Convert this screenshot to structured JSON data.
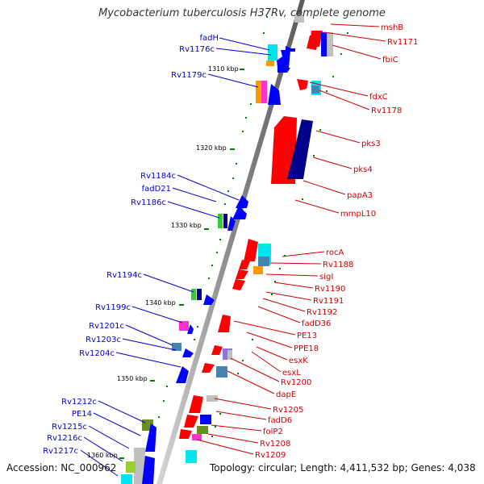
{
  "title": "Mycobacterium tuberculosis H37Rv, complete genome",
  "footer": {
    "accession": "Accession: NC_000962",
    "summary": "Topology: circular; Length: 4,411,532 bp; Genes: 4,038"
  },
  "ticks": [
    "1310 kbp",
    "1320 kbp",
    "1330 kbp",
    "1340 kbp",
    "1350 kbp",
    "1360 kbp"
  ],
  "left_labels": [
    "fadH",
    "Rv1176c",
    "Rv1179c",
    "Rv1184c",
    "fadD21",
    "Rv1186c",
    "Rv1194c",
    "Rv1199c",
    "Rv1201c",
    "Rv1203c",
    "Rv1204c",
    "Rv1212c",
    "PE14",
    "Rv1215c",
    "Rv1216c",
    "Rv1217c"
  ],
  "right_labels": [
    "mshB",
    "Rv1171",
    "fbiC",
    "fdxC",
    "Rv1178",
    "pks3",
    "pks4",
    "papA3",
    "mmpL10",
    "rocA",
    "Rv1188",
    "sigI",
    "Rv1190",
    "Rv1191",
    "Rv1192",
    "fadD36",
    "PE13",
    "PPE18",
    "esxK",
    "esxL",
    "Rv1200",
    "dapE",
    "Rv1205",
    "fadD6",
    "folP2",
    "Rv1208",
    "Rv1209"
  ],
  "colors": {
    "forward_strand": "#ff0000",
    "reverse_strand": "#0000ff",
    "left_label": "#0000cc",
    "right_label": "#cc0000",
    "backbone": "#808080",
    "tick": "#008000"
  }
}
